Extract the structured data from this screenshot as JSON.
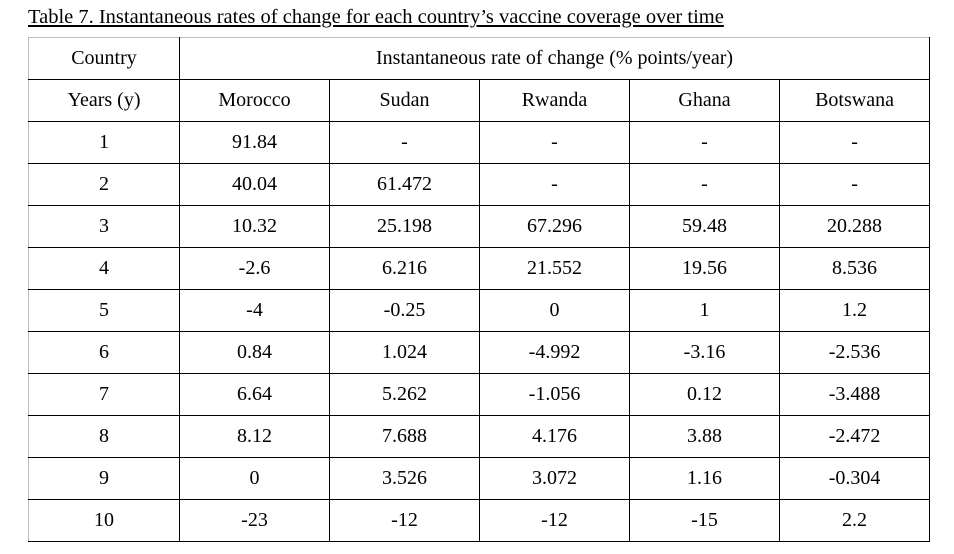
{
  "caption": "Table 7. Instantaneous rates of change for each country’s vaccine coverage over time",
  "header": {
    "country": "Country",
    "rate": "Instantaneous rate of change (% points/year)",
    "years": "Years (y)",
    "countries": [
      "Morocco",
      "Sudan",
      "Rwanda",
      "Ghana",
      "Botswana"
    ]
  },
  "rows": [
    {
      "year": "1",
      "values": [
        "91.84",
        "-",
        "-",
        "-",
        "-"
      ]
    },
    {
      "year": "2",
      "values": [
        "40.04",
        "61.472",
        "-",
        "-",
        "-"
      ]
    },
    {
      "year": "3",
      "values": [
        "10.32",
        "25.198",
        "67.296",
        "59.48",
        "20.288"
      ]
    },
    {
      "year": "4",
      "values": [
        "-2.6",
        "6.216",
        "21.552",
        "19.56",
        "8.536"
      ]
    },
    {
      "year": "5",
      "values": [
        "-4",
        "-0.25",
        "0",
        "1",
        "1.2"
      ]
    },
    {
      "year": "6",
      "values": [
        "0.84",
        "1.024",
        "-4.992",
        "-3.16",
        "-2.536"
      ]
    },
    {
      "year": "7",
      "values": [
        "6.64",
        "5.262",
        "-1.056",
        "0.12",
        "-3.488"
      ]
    },
    {
      "year": "8",
      "values": [
        "8.12",
        "7.688",
        "4.176",
        "3.88",
        "-2.472"
      ]
    },
    {
      "year": "9",
      "values": [
        "0",
        "3.526",
        "3.072",
        "1.16",
        "-0.304"
      ]
    },
    {
      "year": "10",
      "values": [
        "-23",
        "-12",
        "-12",
        "-15",
        "2.2"
      ]
    }
  ]
}
